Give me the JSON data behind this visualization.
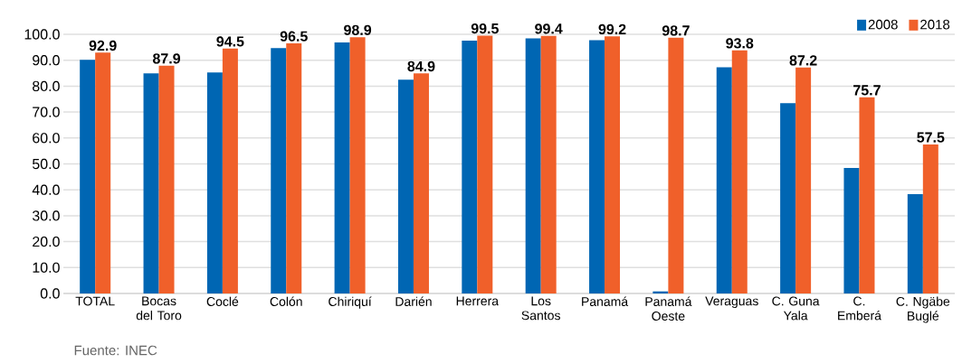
{
  "chart_data": {
    "type": "bar",
    "categories": [
      "TOTAL",
      "Bocas del Toro",
      "Coclé",
      "Colón",
      "Chiriquí",
      "Darién",
      "Herrera",
      "Los Santos",
      "Panamá",
      "Panamá Oeste",
      "Veraguas",
      "C. Guna Yala",
      "C. Emberá",
      "C. Ngäbe Buglé"
    ],
    "series": [
      {
        "name": "2008",
        "color": "#0066b3",
        "values": [
          90.2,
          84.9,
          85.3,
          94.7,
          96.9,
          82.5,
          97.6,
          98.4,
          97.7,
          0.8,
          87.3,
          73.4,
          48.4,
          38.3
        ]
      },
      {
        "name": "2018",
        "color": "#f0602a",
        "values": [
          92.9,
          87.9,
          94.5,
          96.5,
          98.9,
          84.9,
          99.5,
          99.4,
          99.2,
          98.7,
          93.8,
          87.2,
          75.7,
          57.5
        ],
        "value_labels": [
          "92.9",
          "87.9",
          "94.5",
          "96.5",
          "98.9",
          "84.9",
          "99.5",
          "99.4",
          "99.2",
          "98.7",
          "93.8",
          "87.2",
          "75.7",
          "57.5"
        ]
      }
    ],
    "ylim": [
      0,
      100
    ],
    "yticks": [
      {
        "value": 0,
        "label": "0.0"
      },
      {
        "value": 10,
        "label": "10.0"
      },
      {
        "value": 20,
        "label": "20.0"
      },
      {
        "value": 30,
        "label": "30.0"
      },
      {
        "value": 40,
        "label": "40.0"
      },
      {
        "value": 50,
        "label": "50.0"
      },
      {
        "value": 60,
        "label": "60.0"
      },
      {
        "value": 70,
        "label": "70.0"
      },
      {
        "value": 80,
        "label": "80.0"
      },
      {
        "value": 90,
        "label": "90.0"
      },
      {
        "value": 100,
        "label": "100.0"
      }
    ],
    "grid": "y",
    "legend": "top right",
    "annotations": [
      "Fuente: INEC"
    ]
  }
}
